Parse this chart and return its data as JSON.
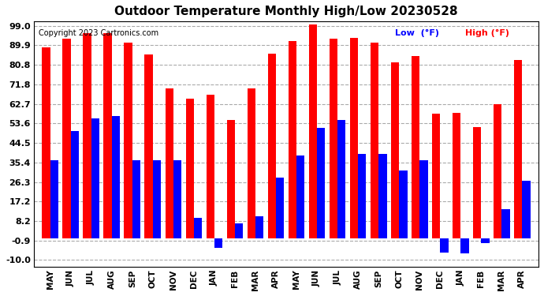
{
  "title": "Outdoor Temperature Monthly High/Low 20230528",
  "copyright": "Copyright 2023 Cartronics.com",
  "legend_low": "Low  (°F)",
  "legend_high": "High (°F)",
  "months": [
    "MAY",
    "JUN",
    "JUL",
    "AUG",
    "SEP",
    "OCT",
    "NOV",
    "DEC",
    "JAN",
    "FEB",
    "MAR",
    "APR",
    "MAY",
    "JUN",
    "JUL",
    "AUG",
    "SEP",
    "OCT",
    "NOV",
    "DEC",
    "JAN",
    "FEB",
    "MAR",
    "APR"
  ],
  "high": [
    89.0,
    93.0,
    95.5,
    95.5,
    91.0,
    85.5,
    70.0,
    65.0,
    67.0,
    55.0,
    70.0,
    86.0,
    92.0,
    99.5,
    93.0,
    93.5,
    91.0,
    82.0,
    85.0,
    58.0,
    58.5,
    52.0,
    62.5,
    83.0
  ],
  "low": [
    36.5,
    50.0,
    56.0,
    57.0,
    36.5,
    36.5,
    36.5,
    9.5,
    -4.5,
    7.0,
    10.5,
    28.5,
    38.5,
    51.5,
    55.0,
    39.5,
    39.5,
    31.5,
    36.5,
    -6.5,
    -7.0,
    -2.0,
    13.5,
    27.0
  ],
  "high_color": "#ff0000",
  "low_color": "#0000ff",
  "background_color": "#ffffff",
  "grid_color": "#aaaaaa",
  "yticks": [
    -10.0,
    -0.9,
    8.2,
    17.2,
    26.3,
    35.4,
    44.5,
    53.6,
    62.7,
    71.8,
    80.8,
    89.9,
    99.0
  ],
  "ylim": [
    -13,
    101
  ],
  "bar_width": 0.4
}
